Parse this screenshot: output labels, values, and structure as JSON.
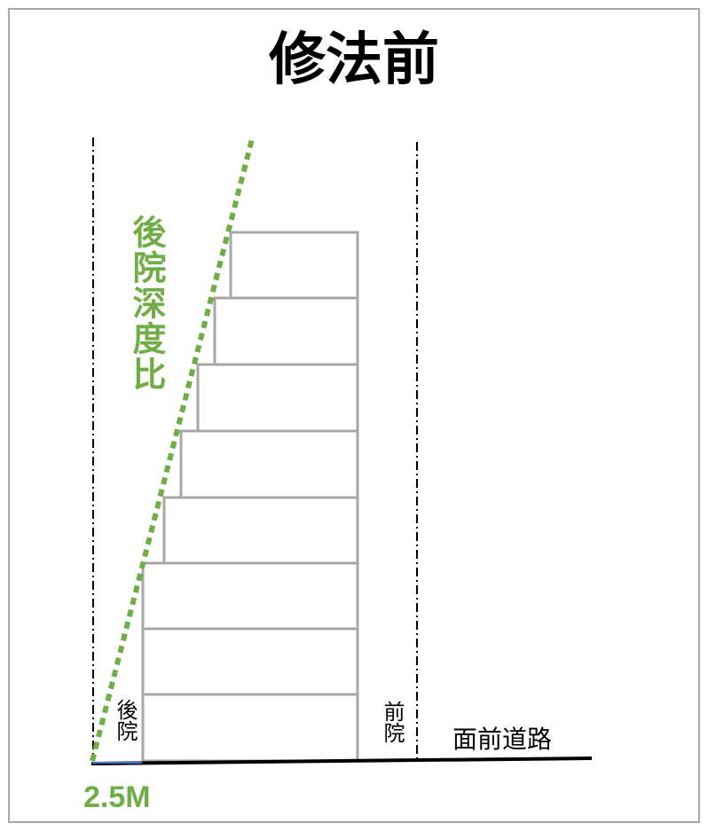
{
  "title": "修法前",
  "labels": {
    "rear_yard_depth_ratio": "後院深度比",
    "rear_yard": "後院",
    "front_yard": "前院",
    "front_road": "面前道路",
    "rear_depth_value": "2.5M"
  },
  "colors": {
    "accent_green": "#70ad47",
    "building_outline": "#a6a6a6",
    "ground": "#000000"
  }
}
